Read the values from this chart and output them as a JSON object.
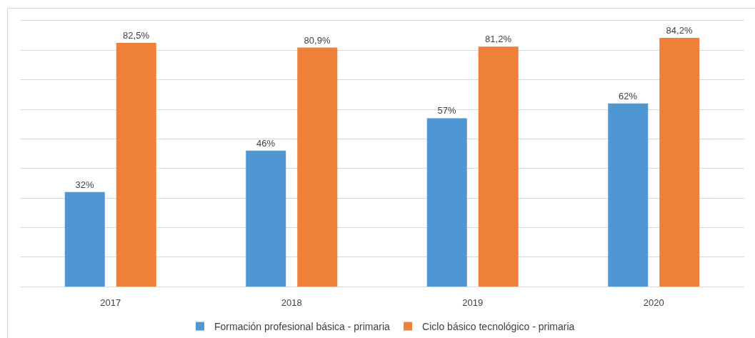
{
  "chart_data": {
    "type": "bar",
    "categories": [
      "2017",
      "2018",
      "2019",
      "2020"
    ],
    "series": [
      {
        "name": "Formación profesional básica - primaria",
        "color": "#4f97d3",
        "values": [
          32,
          46,
          57,
          62
        ],
        "value_labels": [
          "32%",
          "46%",
          "57%",
          "62%"
        ]
      },
      {
        "name": "Ciclo básico tecnológico - primaria",
        "color": "#ef8039",
        "values": [
          82.5,
          80.9,
          81.2,
          84.2
        ],
        "value_labels": [
          "82,5%",
          "80,9%",
          "81,2%",
          "84,2%"
        ]
      }
    ],
    "ylim": [
      0,
      90
    ],
    "yticks": [
      {
        "value": 0,
        "label": null
      },
      {
        "value": 10,
        "label": null
      },
      {
        "value": 20,
        "label": null
      },
      {
        "value": 30,
        "label": null
      },
      {
        "value": 40,
        "label": null
      },
      {
        "value": 50,
        "label": null
      },
      {
        "value": 60,
        "label": null
      },
      {
        "value": 70,
        "label": null
      },
      {
        "value": 80,
        "label": null
      },
      {
        "value": 90,
        "label": null
      }
    ],
    "grid": "y",
    "legend": "bottom",
    "tick_labels": "x"
  }
}
